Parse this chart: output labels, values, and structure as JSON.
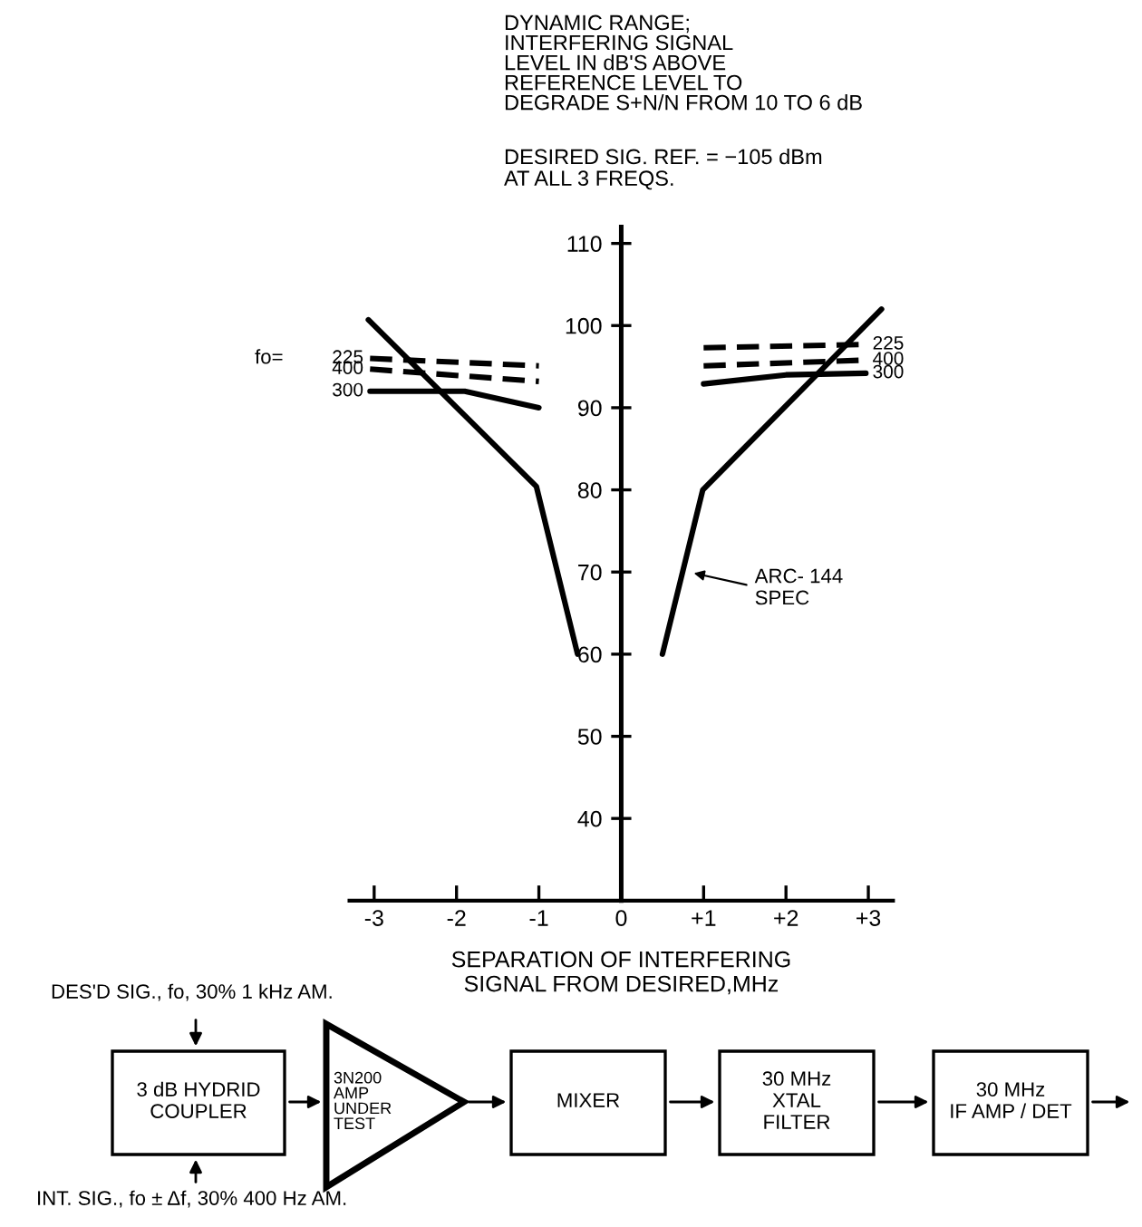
{
  "chart_data": {
    "type": "line",
    "title": "DYNAMIC RANGE;\nINTERFERING SIGNAL\nLEVEL IN dB'S ABOVE\nREFERENCE LEVEL TO\nDEGRADE S+N/N FROM 10 TO 6 dB",
    "subtitle": "DESIRED SIG. REF. = −105 dBm\nAT ALL 3 FREQS.",
    "xlabel": "SEPARATION OF INTERFERING\nSIGNAL FROM DESIRED,MHz",
    "series": [
      {
        "name": "225",
        "color": "#000000",
        "line_style": "dashed",
        "x": [
          -3.05,
          -1.0,
          null,
          1.0,
          2.97
        ],
        "values": [
          96,
          95.1,
          null,
          97.3,
          97.7
        ]
      },
      {
        "name": "400",
        "color": "#000000",
        "line_style": "dashed",
        "x": [
          -3.05,
          -1.0,
          null,
          1.0,
          2.97
        ],
        "values": [
          94.7,
          93.2,
          null,
          95.1,
          95.8
        ]
      },
      {
        "name": "300",
        "color": "#000000",
        "line_style": "solid",
        "x": [
          -3.05,
          -1.9,
          -1.0,
          null,
          1.0,
          2.0,
          2.97
        ],
        "values": [
          92,
          92,
          90,
          null,
          92.9,
          94,
          94.2
        ]
      },
      {
        "color": "#000000",
        "line_style": "solid",
        "x": [
          -3.07,
          -1.03,
          -0.53,
          null,
          0.5,
          0.99,
          3.16
        ],
        "values": [
          100.7,
          80.4,
          60,
          null,
          60,
          80,
          102
        ]
      }
    ],
    "xlim": [
      -3.3,
      3.3
    ],
    "ylim": [
      30,
      112
    ],
    "xticks": [
      -3,
      -2,
      -1,
      0,
      {
        "value": 1,
        "label": "+1"
      },
      {
        "value": 2,
        "label": "+2"
      },
      {
        "value": 3,
        "label": "+3"
      }
    ],
    "yticks": [
      40,
      50,
      60,
      70,
      80,
      90,
      100,
      110
    ],
    "grid": false,
    "legend": false,
    "marker": "none",
    "annotations": [
      "ARC- 144\nSPEC",
      "fo=",
      "DES'D SIG., fo, 30% 1 kHz AM.",
      "3 dB HYDRID\nCOUPLER",
      "3N200\nAMP\nUNDER\nTEST",
      "MIXER",
      "30 MHz\nXTAL\nFILTER",
      "30 MHz\nIF AMP / DET",
      "INT. SIG., fo ± Δf, 30% 400 Hz AM."
    ]
  }
}
